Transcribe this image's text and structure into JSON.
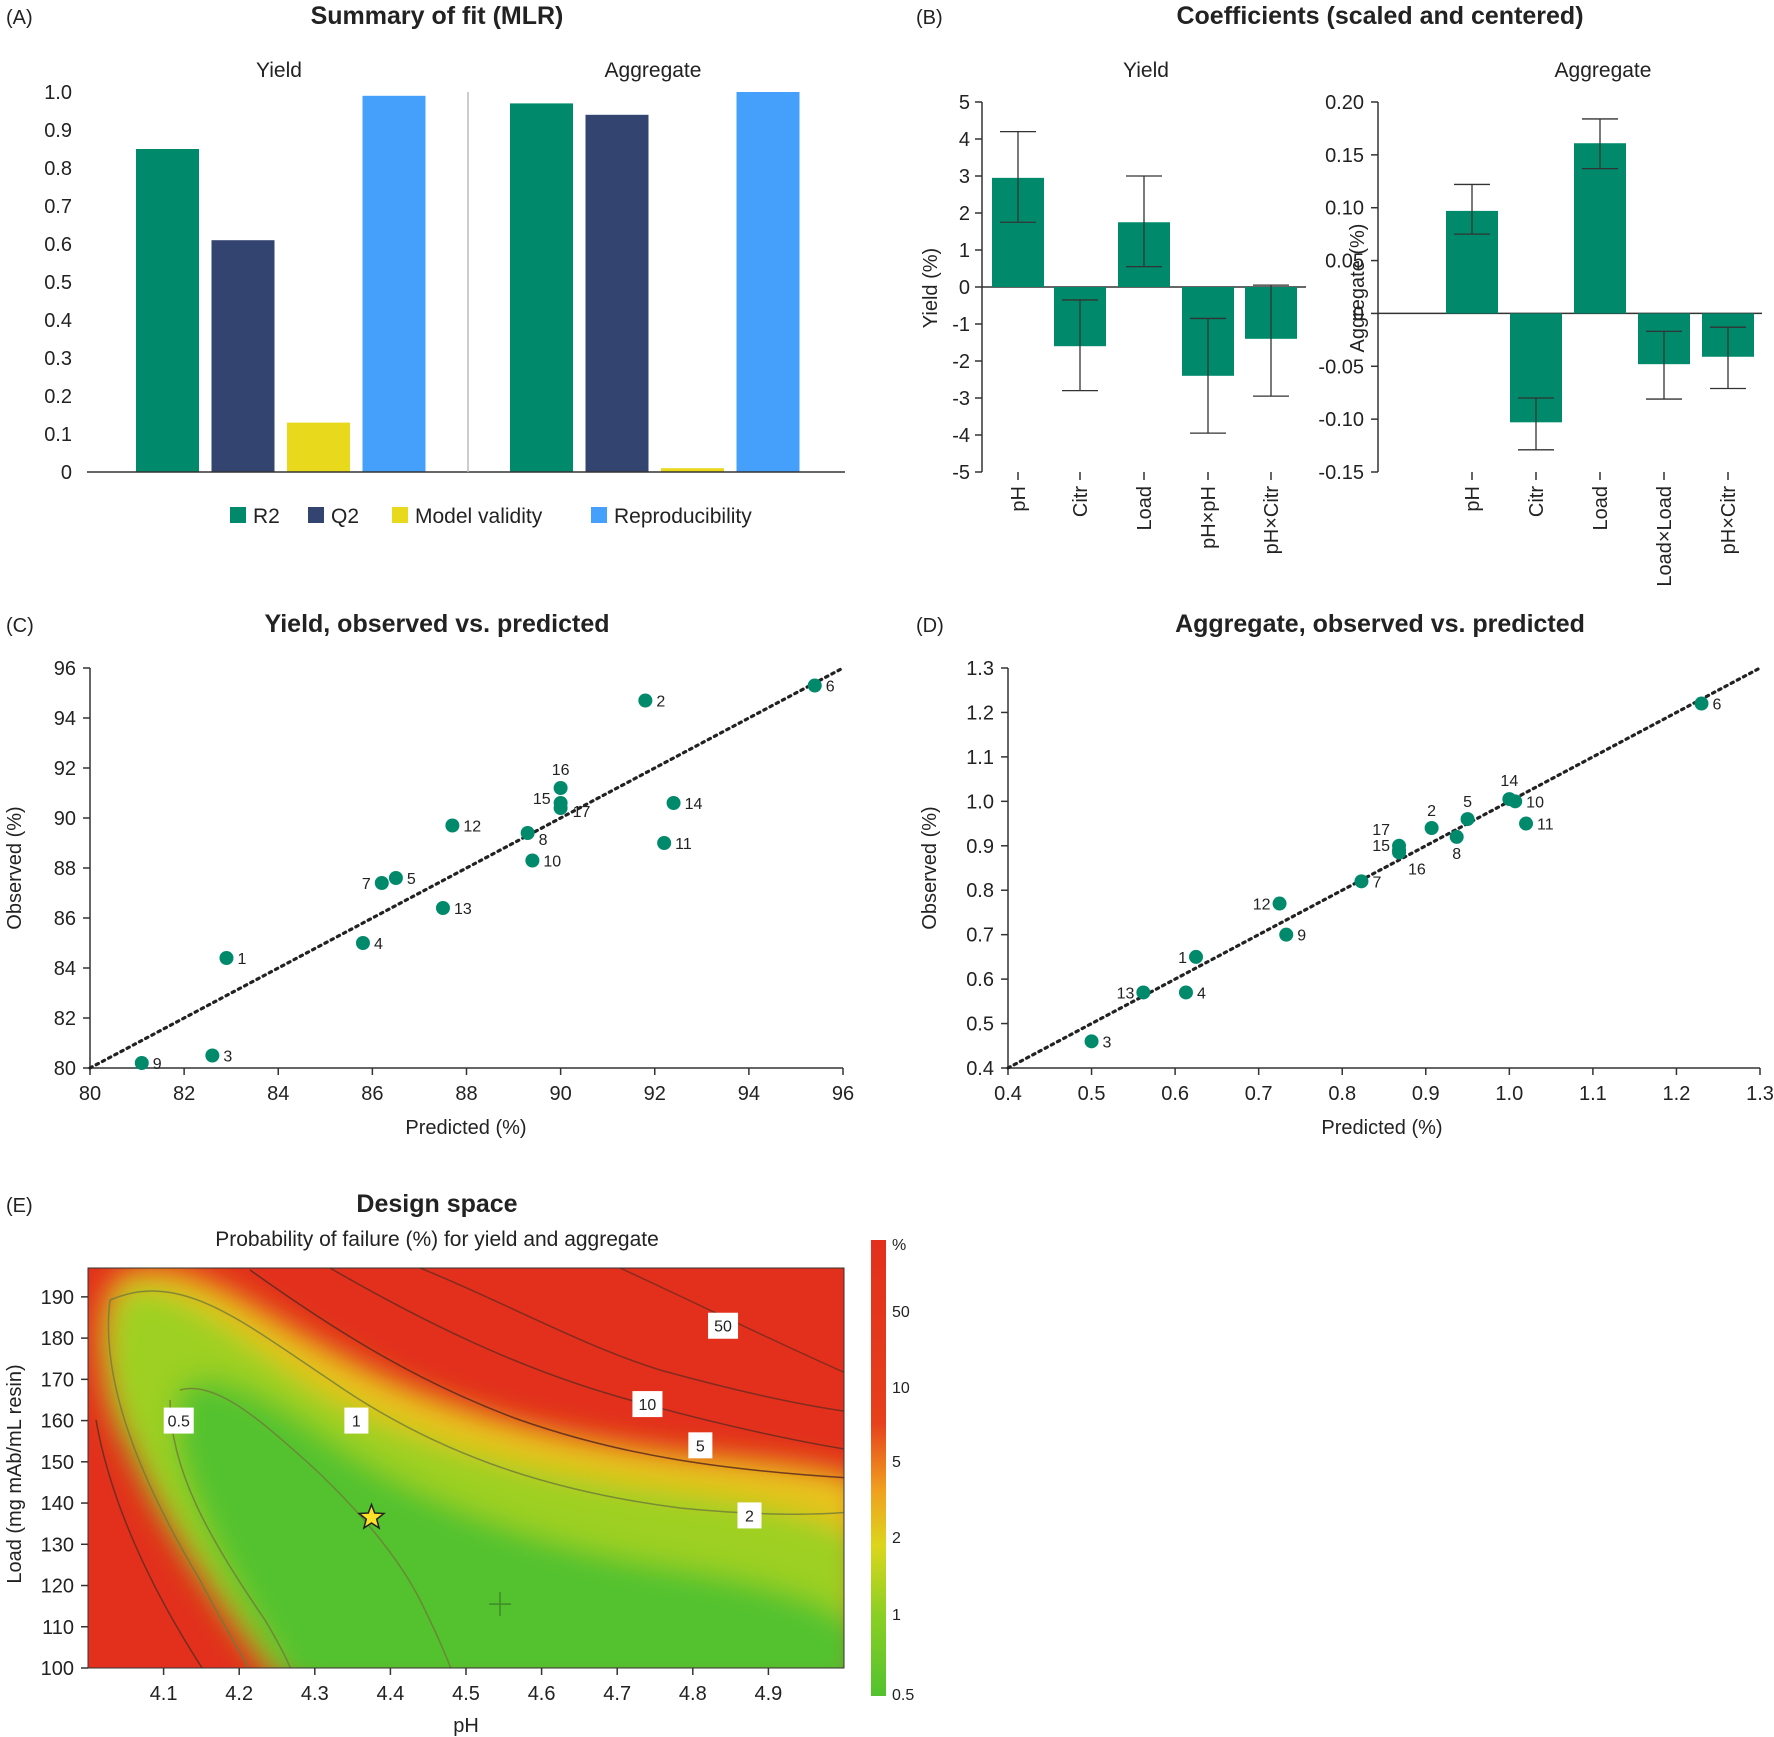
{
  "colors": {
    "r2": "#008a6c",
    "q2": "#344470",
    "validity": "#e8d91c",
    "reproducibility": "#44a0fb",
    "coef": "#008a6c",
    "point": "#008a6c",
    "dsGreen": "#52c22e",
    "dsYellow": "#e0d21a",
    "dsRed": "#e2301c"
  },
  "chart_data": [
    {
      "id": "A",
      "panel_label": "(A)",
      "type": "bar",
      "title": "Summary of fit (MLR)",
      "groups": [
        "Yield",
        "Aggregate"
      ],
      "series": [
        {
          "name": "R2",
          "values": [
            0.85,
            0.97
          ]
        },
        {
          "name": "Q2",
          "values": [
            0.61,
            0.94
          ]
        },
        {
          "name": "Model validity",
          "values": [
            0.13,
            0.01
          ]
        },
        {
          "name": "Reproducibility",
          "values": [
            0.99,
            1.0
          ]
        }
      ],
      "ylim": [
        0,
        1.0
      ],
      "yticks": [
        "0",
        "0.1",
        "0.2",
        "0.3",
        "0.4",
        "0.5",
        "0.6",
        "0.7",
        "0.8",
        "0.9",
        "1.0"
      ],
      "legend_position": "bottom"
    },
    {
      "id": "B",
      "panel_label": "(B)",
      "type": "bar",
      "title": "Coefficients (scaled and centered)",
      "subplots": [
        {
          "subtitle": "Yield",
          "ylabel": "Yield (%)",
          "categories": [
            "pH",
            "Citr",
            "Load",
            "pH×pH",
            "pH×Citr"
          ],
          "values": [
            2.95,
            -1.6,
            1.75,
            -2.4,
            -1.4
          ],
          "err_low": [
            1.75,
            -2.8,
            0.55,
            -3.95,
            -2.95
          ],
          "err_high": [
            4.2,
            -0.35,
            3.0,
            -0.85,
            0.05
          ],
          "ylim": [
            -5,
            5
          ],
          "yticks": [
            "-5",
            "-4",
            "-3",
            "-2",
            "-1",
            "0",
            "1",
            "2",
            "3",
            "4",
            "5"
          ]
        },
        {
          "subtitle": "Aggregate",
          "ylabel": "Aggregate (%)",
          "categories": [
            "pH",
            "Citr",
            "Load",
            "Load×Load",
            "pH×Citr"
          ],
          "values": [
            0.097,
            -0.103,
            0.161,
            -0.048,
            -0.041
          ],
          "err_low": [
            0.075,
            -0.129,
            0.137,
            -0.081,
            -0.071
          ],
          "err_high": [
            0.122,
            -0.08,
            0.184,
            -0.017,
            -0.013
          ],
          "ylim": [
            -0.15,
            0.2
          ],
          "yticks": [
            "-0.15",
            "-0.10",
            "-0.05",
            "0",
            "0.05",
            "0.10",
            "0.15",
            "0.20"
          ]
        }
      ]
    },
    {
      "id": "C",
      "panel_label": "(C)",
      "type": "scatter",
      "title": "Yield, observed vs. predicted",
      "xlabel": "Predicted (%)",
      "ylabel": "Observed (%)",
      "xlim": [
        80,
        96
      ],
      "ylim": [
        80,
        96
      ],
      "xticks": [
        "80",
        "82",
        "84",
        "86",
        "88",
        "90",
        "92",
        "94",
        "96"
      ],
      "yticks": [
        "80",
        "82",
        "84",
        "86",
        "88",
        "90",
        "92",
        "94",
        "96"
      ],
      "points": [
        {
          "label": "1",
          "x": 82.9,
          "y": 84.4
        },
        {
          "label": "2",
          "x": 91.8,
          "y": 94.7
        },
        {
          "label": "3",
          "x": 82.6,
          "y": 80.5
        },
        {
          "label": "4",
          "x": 85.8,
          "y": 85.0
        },
        {
          "label": "5",
          "x": 86.5,
          "y": 87.6
        },
        {
          "label": "6",
          "x": 95.4,
          "y": 95.3
        },
        {
          "label": "7",
          "x": 86.2,
          "y": 87.4
        },
        {
          "label": "8",
          "x": 89.3,
          "y": 89.4
        },
        {
          "label": "9",
          "x": 81.1,
          "y": 80.2
        },
        {
          "label": "10",
          "x": 89.4,
          "y": 88.3
        },
        {
          "label": "11",
          "x": 92.2,
          "y": 89.0
        },
        {
          "label": "12",
          "x": 87.7,
          "y": 89.7
        },
        {
          "label": "13",
          "x": 87.5,
          "y": 86.4
        },
        {
          "label": "14",
          "x": 92.4,
          "y": 90.6
        },
        {
          "label": "15",
          "x": 90.0,
          "y": 90.6
        },
        {
          "label": "16",
          "x": 90.0,
          "y": 91.2
        },
        {
          "label": "17",
          "x": 90.0,
          "y": 90.4
        }
      ]
    },
    {
      "id": "D",
      "panel_label": "(D)",
      "type": "scatter",
      "title": "Aggregate, observed vs. predicted",
      "xlabel": "Predicted (%)",
      "ylabel": "Observed (%)",
      "xlim": [
        0.4,
        1.3
      ],
      "ylim": [
        0.4,
        1.3
      ],
      "xticks": [
        "0.4",
        "0.5",
        "0.6",
        "0.7",
        "0.8",
        "0.9",
        "1.0",
        "1.1",
        "1.2",
        "1.3"
      ],
      "yticks": [
        "0.4",
        "0.5",
        "0.6",
        "0.7",
        "0.8",
        "0.9",
        "1.0",
        "1.1",
        "1.2",
        "1.3"
      ],
      "points": [
        {
          "label": "1",
          "x": 0.625,
          "y": 0.65
        },
        {
          "label": "2",
          "x": 0.907,
          "y": 0.94
        },
        {
          "label": "3",
          "x": 0.5,
          "y": 0.46
        },
        {
          "label": "4",
          "x": 0.613,
          "y": 0.57
        },
        {
          "label": "5",
          "x": 0.95,
          "y": 0.96
        },
        {
          "label": "6",
          "x": 1.23,
          "y": 1.22
        },
        {
          "label": "7",
          "x": 0.823,
          "y": 0.82
        },
        {
          "label": "8",
          "x": 0.937,
          "y": 0.92
        },
        {
          "label": "9",
          "x": 0.733,
          "y": 0.7
        },
        {
          "label": "10",
          "x": 1.007,
          "y": 1.0
        },
        {
          "label": "11",
          "x": 1.02,
          "y": 0.95
        },
        {
          "label": "12",
          "x": 0.725,
          "y": 0.77
        },
        {
          "label": "13",
          "x": 0.562,
          "y": 0.57
        },
        {
          "label": "14",
          "x": 1.0,
          "y": 1.005
        },
        {
          "label": "15",
          "x": 0.868,
          "y": 0.9
        },
        {
          "label": "16",
          "x": 0.868,
          "y": 0.885
        },
        {
          "label": "17",
          "x": 0.868,
          "y": 0.89
        }
      ]
    },
    {
      "id": "E",
      "panel_label": "(E)",
      "type": "heatmap",
      "title": "Design space",
      "subtitle": "Probability of failure (%) for yield and aggregate",
      "xlabel": "pH",
      "ylabel": "Load (mg mAb/mL resin)",
      "xlim": [
        4.0,
        5.0
      ],
      "ylim": [
        100,
        197
      ],
      "xticks": [
        "4.1",
        "4.2",
        "4.3",
        "4.4",
        "4.5",
        "4.6",
        "4.7",
        "4.8",
        "4.9"
      ],
      "yticks": [
        "100",
        "110",
        "120",
        "130",
        "140",
        "150",
        "160",
        "170",
        "180",
        "190"
      ],
      "contour_labels": [
        {
          "text": "0.5",
          "x": 4.12,
          "y": 160
        },
        {
          "text": "1",
          "x": 4.355,
          "y": 160
        },
        {
          "text": "50",
          "x": 4.84,
          "y": 183
        },
        {
          "text": "10",
          "x": 4.74,
          "y": 164
        },
        {
          "text": "5",
          "x": 4.81,
          "y": 154
        },
        {
          "text": "2",
          "x": 4.875,
          "y": 137
        }
      ],
      "setpoint": {
        "x": 4.375,
        "y": 136.5
      },
      "crosshair": {
        "x": 4.545,
        "y": 115.5
      },
      "colorbar": {
        "unit": "%",
        "labels": [
          "50",
          "10",
          "5",
          "2",
          "1",
          "0.5"
        ]
      }
    }
  ]
}
